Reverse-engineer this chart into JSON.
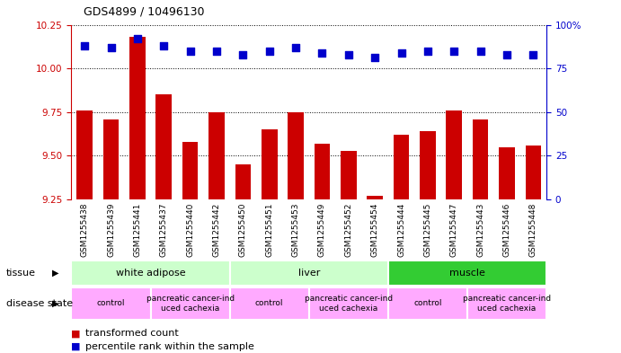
{
  "title": "GDS4899 / 10496130",
  "samples": [
    "GSM1255438",
    "GSM1255439",
    "GSM1255441",
    "GSM1255437",
    "GSM1255440",
    "GSM1255442",
    "GSM1255450",
    "GSM1255451",
    "GSM1255453",
    "GSM1255449",
    "GSM1255452",
    "GSM1255454",
    "GSM1255444",
    "GSM1255445",
    "GSM1255447",
    "GSM1255443",
    "GSM1255446",
    "GSM1255448"
  ],
  "transformed_count": [
    9.76,
    9.71,
    10.18,
    9.85,
    9.58,
    9.75,
    9.45,
    9.65,
    9.75,
    9.57,
    9.53,
    9.27,
    9.62,
    9.64,
    9.76,
    9.71,
    9.55,
    9.56
  ],
  "percentile_rank": [
    88,
    87,
    92,
    88,
    85,
    85,
    83,
    85,
    87,
    84,
    83,
    81,
    84,
    85,
    85,
    85,
    83,
    83
  ],
  "ylim_left": [
    9.25,
    10.25
  ],
  "ylim_right": [
    0,
    100
  ],
  "yticks_left": [
    9.25,
    9.5,
    9.75,
    10.0,
    10.25
  ],
  "yticks_right": [
    0,
    25,
    50,
    75,
    100
  ],
  "bar_color": "#cc0000",
  "dot_color": "#0000cc",
  "tissue_groups": [
    {
      "label": "white adipose",
      "start": 0,
      "end": 6,
      "color": "#ccffcc"
    },
    {
      "label": "liver",
      "start": 6,
      "end": 12,
      "color": "#ccffcc"
    },
    {
      "label": "muscle",
      "start": 12,
      "end": 18,
      "color": "#33cc33"
    }
  ],
  "disease_groups": [
    {
      "label": "control",
      "start": 0,
      "end": 3,
      "color": "#ffaaff"
    },
    {
      "label": "pancreatic cancer-ind\nuced cachexia",
      "start": 3,
      "end": 6,
      "color": "#ffaaff"
    },
    {
      "label": "control",
      "start": 6,
      "end": 9,
      "color": "#ffaaff"
    },
    {
      "label": "pancreatic cancer-ind\nuced cachexia",
      "start": 9,
      "end": 12,
      "color": "#ffaaff"
    },
    {
      "label": "control",
      "start": 12,
      "end": 15,
      "color": "#ffaaff"
    },
    {
      "label": "pancreatic cancer-ind\nuced cachexia",
      "start": 15,
      "end": 18,
      "color": "#ffaaff"
    }
  ],
  "background_color": "#ffffff",
  "grid_color": "#000000",
  "tick_color_left": "#cc0000",
  "tick_color_right": "#0000cc",
  "bar_width": 0.6,
  "dot_size": 30,
  "sample_bg_color": "#cccccc",
  "sample_divider_color": "#ffffff"
}
